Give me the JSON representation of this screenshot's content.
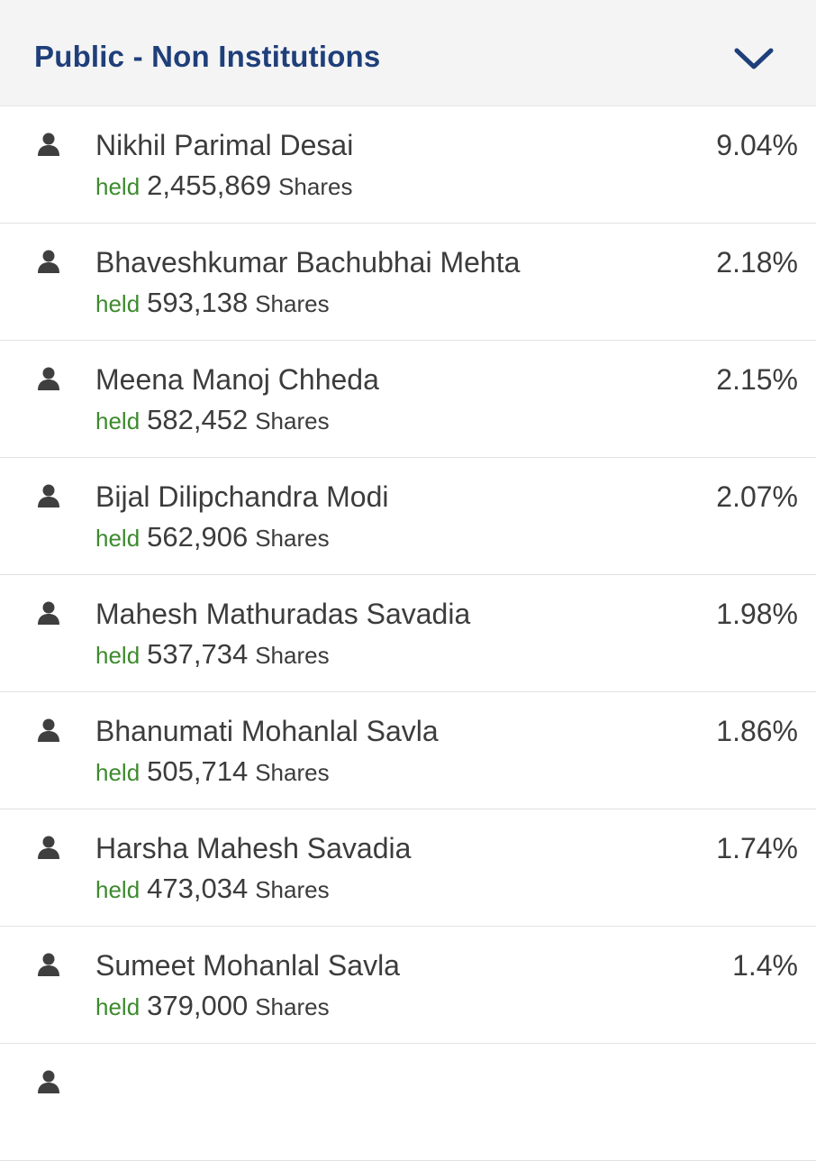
{
  "header": {
    "title": "Public - Non Institutions",
    "expand_icon": "chevron-down-icon",
    "title_color": "#1f3f7a"
  },
  "colors": {
    "held_green": "#3d8a2e",
    "text": "#3c3c3c"
  },
  "holders": [
    {
      "name": "Nikhil Parimal Desai",
      "held": "held",
      "count": "2,455,869",
      "unit": "Shares",
      "percent": "9.04%"
    },
    {
      "name": "Bhaveshkumar Bachubhai Mehta",
      "held": "held",
      "count": "593,138",
      "unit": "Shares",
      "percent": "2.18%"
    },
    {
      "name": "Meena Manoj Chheda",
      "held": "held",
      "count": "582,452",
      "unit": "Shares",
      "percent": "2.15%"
    },
    {
      "name": "Bijal Dilipchandra Modi",
      "held": "held",
      "count": "562,906",
      "unit": "Shares",
      "percent": "2.07%"
    },
    {
      "name": "Mahesh Mathuradas Savadia",
      "held": "held",
      "count": "537,734",
      "unit": "Shares",
      "percent": "1.98%"
    },
    {
      "name": "Bhanumati Mohanlal Savla",
      "held": "held",
      "count": "505,714",
      "unit": "Shares",
      "percent": "1.86%"
    },
    {
      "name": "Harsha Mahesh Savadia",
      "held": "held",
      "count": "473,034",
      "unit": "Shares",
      "percent": "1.74%"
    },
    {
      "name": "Sumeet Mohanlal Savla",
      "held": "held",
      "count": "379,000",
      "unit": "Shares",
      "percent": "1.4%"
    }
  ]
}
